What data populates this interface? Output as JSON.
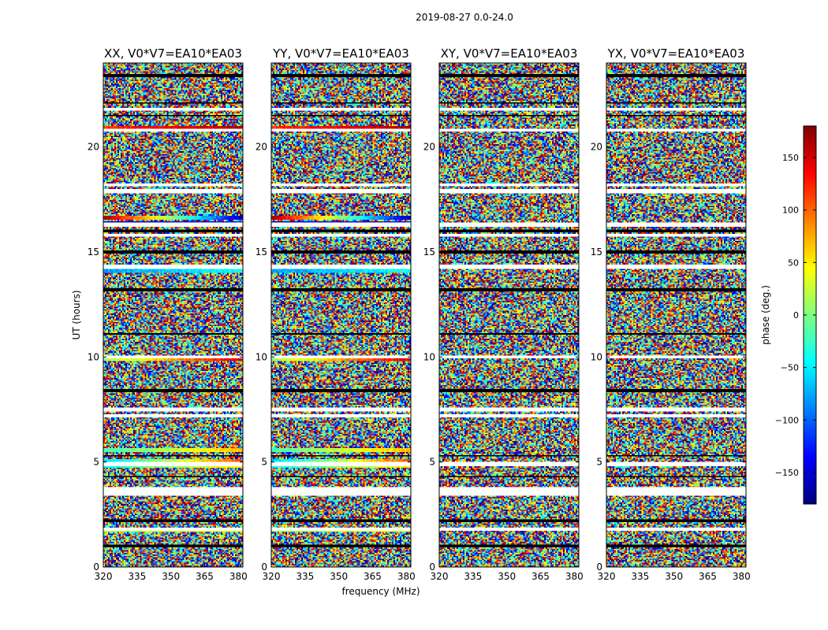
{
  "figure_title": "2019-08-27 0.0-24.0",
  "chart_data": {
    "type": "heatmap",
    "suptitle": "2019-08-27 0.0-24.0",
    "xlabel": "frequency (MHz)",
    "ylabel": "UT (hours)",
    "xlim": [
      320,
      382
    ],
    "ylim": [
      0,
      24
    ],
    "xticks": [
      "320",
      "335",
      "350",
      "365",
      "380"
    ],
    "xtick_values": [
      320,
      335,
      350,
      365,
      380
    ],
    "yticks": [
      "0",
      "5",
      "10",
      "15",
      "20"
    ],
    "ytick_values": [
      0,
      5,
      10,
      15,
      20
    ],
    "colorbar": {
      "label": "phase (deg.)",
      "range": [
        -180,
        180
      ],
      "colormap": "jet",
      "ticks": [
        "150",
        "100",
        "50",
        "0",
        "−50",
        "−100",
        "−150"
      ],
      "tick_values": [
        150,
        100,
        50,
        0,
        -50,
        -100,
        -150
      ]
    },
    "panels": [
      {
        "title": "XX, V0*V7=EA10*EA03",
        "polarization": "XX"
      },
      {
        "title": "YY, V0*V7=EA10*EA03",
        "polarization": "YY"
      },
      {
        "title": "XY, V0*V7=EA10*EA03",
        "polarization": "XY"
      },
      {
        "title": "YX, V0*V7=EA10*EA03",
        "polarization": "YX"
      }
    ],
    "flagged_rows_ut": [
      1.8,
      3.5,
      3.7,
      4.9,
      7.2,
      7.5,
      10.0,
      14.3,
      15.8,
      16.3,
      17.9,
      18.2,
      20.8,
      21.8
    ],
    "dark_rows_ut": [
      1.0,
      2.2,
      4.3,
      5.3,
      8.4,
      11.1,
      13.2,
      15.0,
      16.0,
      21.5,
      22.1,
      23.4
    ],
    "coherent_bands_parallel": [
      {
        "ut": 20.9,
        "phase_start": 120,
        "phase_end": 160
      },
      {
        "ut": 16.6,
        "phase_start": 165,
        "phase_end": -160
      },
      {
        "ut": 16.4,
        "phase_start": -150,
        "phase_end": -120
      },
      {
        "ut": 14.1,
        "phase_start": -80,
        "phase_end": -40
      },
      {
        "ut": 9.9,
        "phase_start": 10,
        "phase_end": 150
      },
      {
        "ut": 5.55,
        "phase_start": -20,
        "phase_end": 70
      },
      {
        "ut": 5.05,
        "phase_start": -60,
        "phase_end": 110
      },
      {
        "ut": 4.85,
        "phase_start": -40,
        "phase_end": 60
      },
      {
        "ut": 3.6,
        "phase_start": -70,
        "phase_end": -40
      },
      {
        "ut": 1.75,
        "phase_start": 10,
        "phase_end": 40
      }
    ]
  }
}
